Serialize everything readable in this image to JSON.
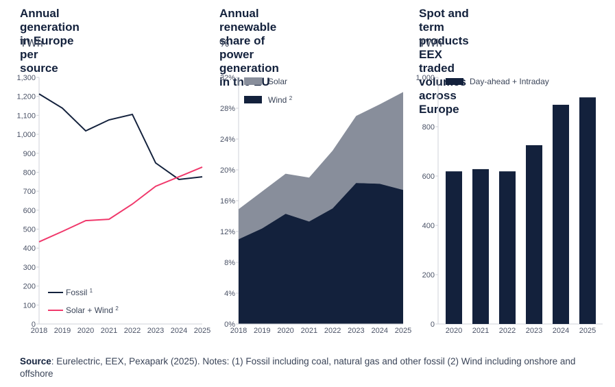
{
  "source": {
    "label": "Source",
    "text": ": Eurelectric, EEX, Pexapark (2025). Notes: (1) Fossil including coal, natural gas and other fossil (2) Wind including onshore and offshore"
  },
  "colors": {
    "navy": "#13213c",
    "pink": "#f0386b",
    "grey": "#888e9b",
    "axis": "#cfd2d8"
  },
  "chart_data": [
    {
      "type": "line",
      "title_line1": "Annual generation in Europe",
      "title_line2": "per source",
      "unit": "TWh",
      "x": [
        "2018",
        "2019",
        "2020",
        "2021",
        "2022",
        "2023",
        "2024",
        "2025"
      ],
      "ylim": [
        0,
        1300
      ],
      "yticks": [
        0,
        100,
        200,
        300,
        400,
        500,
        600,
        700,
        800,
        900,
        1000,
        1100,
        1200,
        1300
      ],
      "ytick_labels": [
        "0",
        "100",
        "200",
        "300",
        "400",
        "500",
        "600",
        "700",
        "800",
        "900",
        "1,000",
        "1,100",
        "1,200",
        "1,300"
      ],
      "legend_position": "bottom-left",
      "series": [
        {
          "name": "Fossil",
          "sup": "1",
          "color": "#13213c",
          "values": [
            1213,
            1138,
            1018,
            1076,
            1105,
            849,
            762,
            776
          ]
        },
        {
          "name": "Solar + Wind",
          "sup": "2",
          "color": "#f0386b",
          "values": [
            433,
            488,
            545,
            552,
            632,
            726,
            776,
            827
          ]
        }
      ]
    },
    {
      "type": "area",
      "stacked": true,
      "title_line1": "Annual renewable share of",
      "title_line2": "power generation in the EU",
      "unit": "%",
      "x": [
        "2018",
        "2019",
        "2020",
        "2021",
        "2022",
        "2023",
        "2024",
        "2025"
      ],
      "ylim": [
        0,
        32
      ],
      "yticks": [
        0,
        4,
        8,
        12,
        16,
        20,
        24,
        28,
        32
      ],
      "ytick_labels": [
        "0%",
        "4%",
        "8%",
        "12%",
        "16%",
        "20%",
        "24%",
        "28%",
        "32%"
      ],
      "legend_position": "top-left",
      "series": [
        {
          "name": "Solar",
          "sup": "",
          "color": "#888e9b",
          "values": [
            3.9,
            4.8,
            5.2,
            5.7,
            7.5,
            8.7,
            10.3,
            12.7
          ]
        },
        {
          "name": "Wind",
          "sup": "2",
          "color": "#13213c",
          "values": [
            11.0,
            12.4,
            14.3,
            13.3,
            15.0,
            18.3,
            18.2,
            17.4
          ]
        }
      ]
    },
    {
      "type": "bar",
      "title_line1": "Spot and term products EEX",
      "title_line2": "traded volumes across Europe",
      "unit": "TWh",
      "categories": [
        "2020",
        "2021",
        "2022",
        "2023",
        "2024",
        "2025"
      ],
      "ylim": [
        0,
        1000
      ],
      "yticks": [
        0,
        200,
        400,
        600,
        800,
        1000
      ],
      "ytick_labels": [
        "0",
        "200",
        "400",
        "600",
        "800",
        "1,000"
      ],
      "legend_position": "top-left",
      "series": [
        {
          "name": "Day-ahead + Intraday",
          "color": "#13213c",
          "values": [
            619,
            628,
            619,
            725,
            889,
            919
          ]
        }
      ]
    }
  ]
}
